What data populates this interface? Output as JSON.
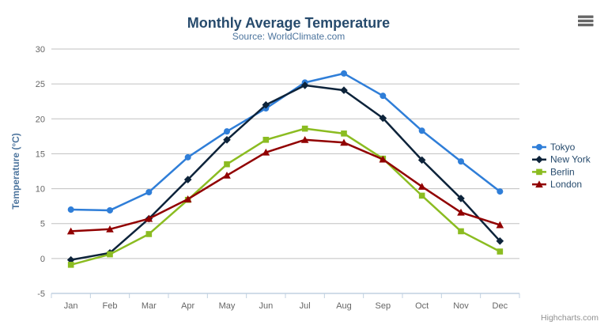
{
  "header": {
    "title": "Monthly Average Temperature",
    "subtitle": "Source: WorldClimate.com"
  },
  "credits": {
    "label": "Highcharts.com"
  },
  "export_menu": {
    "icon": "hamburger-icon"
  },
  "chart_data": {
    "type": "line",
    "title": "Monthly Average Temperature",
    "subtitle": "Source: WorldClimate.com",
    "categories": [
      "Jan",
      "Feb",
      "Mar",
      "Apr",
      "May",
      "Jun",
      "Jul",
      "Aug",
      "Sep",
      "Oct",
      "Nov",
      "Dec"
    ],
    "series": [
      {
        "name": "Tokyo",
        "color": "#2f7ed8",
        "marker": "circle",
        "values": [
          7.0,
          6.9,
          9.5,
          14.5,
          18.2,
          21.5,
          25.2,
          26.5,
          23.3,
          18.3,
          13.9,
          9.6
        ]
      },
      {
        "name": "New York",
        "color": "#0d233a",
        "marker": "diamond",
        "values": [
          -0.2,
          0.8,
          5.7,
          11.3,
          17.0,
          22.0,
          24.8,
          24.1,
          20.1,
          14.1,
          8.6,
          2.5
        ]
      },
      {
        "name": "Berlin",
        "color": "#8bbc21",
        "marker": "square",
        "values": [
          -0.9,
          0.6,
          3.5,
          8.4,
          13.5,
          17.0,
          18.6,
          17.9,
          14.3,
          9.0,
          3.9,
          1.0
        ]
      },
      {
        "name": "London",
        "color": "#910000",
        "marker": "triangle",
        "values": [
          3.9,
          4.2,
          5.7,
          8.5,
          11.9,
          15.2,
          17.0,
          16.6,
          14.2,
          10.3,
          6.6,
          4.8
        ]
      }
    ],
    "xlabel": "",
    "ylabel": "Temperature (°C)",
    "ylim": [
      -5,
      30
    ],
    "yticks": [
      -5,
      0,
      5,
      10,
      15,
      20,
      25,
      30
    ],
    "grid": true,
    "legend_position": "right"
  },
  "colors": {
    "title": "#274b6d",
    "subtitle": "#4d759e",
    "axis_label": "#666666",
    "axis_title": "#4d759e",
    "legend_text": "#274b6d",
    "gridline": "#C0C0C0",
    "axis_line": "#C0D0E0",
    "credits": "#909090",
    "export_icon": "#666666",
    "background": "#ffffff"
  }
}
